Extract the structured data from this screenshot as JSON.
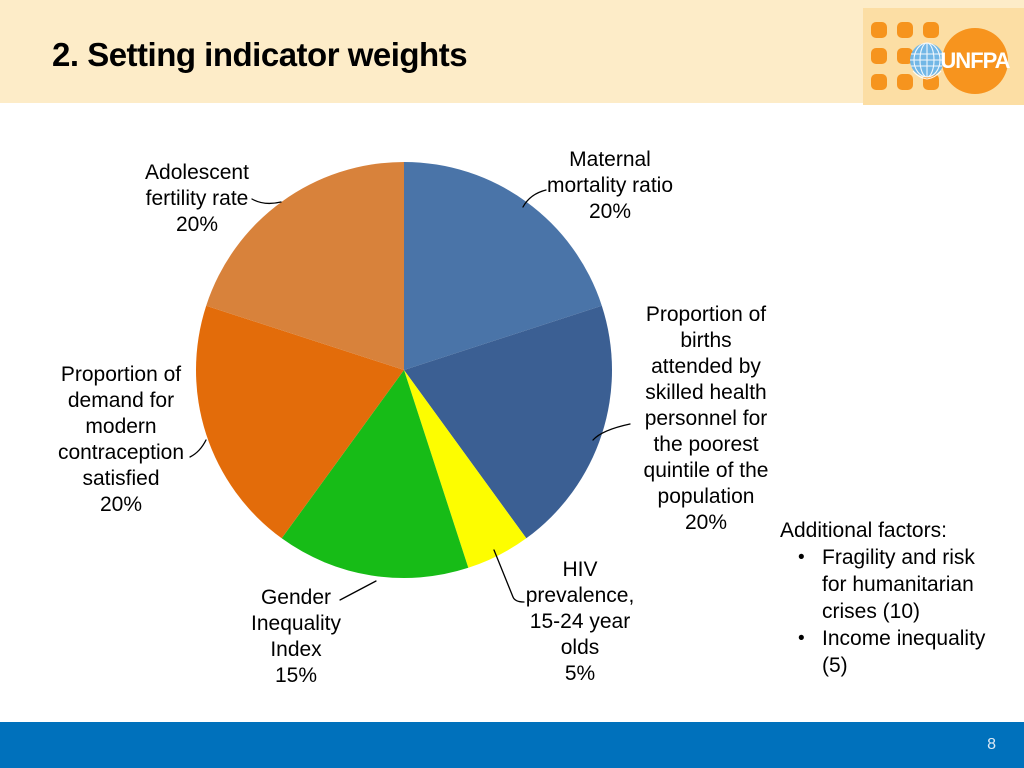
{
  "header": {
    "title": "2. Setting indicator weights",
    "bg_color": "#FDECC8"
  },
  "logo": {
    "name": "UNFPA",
    "text": "UNFPA",
    "dot_color": "#F6941E",
    "circle_color": "#F7941E",
    "globe_color": "#72B7E6",
    "box_color": "#FCDEA4"
  },
  "chart_data": {
    "type": "pie",
    "title": "",
    "start_angle_deg": 0,
    "direction": "clockwise",
    "center": [
      404,
      370
    ],
    "radius": 208,
    "legend_position": "callout-labels",
    "slices": [
      {
        "label": "Maternal mortality ratio",
        "value": 20,
        "color": "#4A74A8",
        "callout": "Maternal\nmortality ratio\n20%"
      },
      {
        "label": "Proportion of births attended by skilled health personnel for the poorest quintile of the population",
        "value": 20,
        "color": "#3B5F93",
        "callout": "Proportion of\nbirths\nattended by\nskilled health\npersonnel for\nthe poorest\nquintile of the\npopulation\n20%"
      },
      {
        "label": "HIV prevalence, 15-24 year olds",
        "value": 5,
        "color": "#FDFD00",
        "callout": "HIV\nprevalence,\n15-24 year\nolds\n5%"
      },
      {
        "label": "Gender Inequality Index",
        "value": 15,
        "color": "#17BC17",
        "callout": "Gender\nInequality\nIndex\n15%"
      },
      {
        "label": "Proportion of demand for modern contraception satisfied",
        "value": 20,
        "color": "#E36C0A",
        "callout": "Proportion of\ndemand for\nmodern\ncontraception\nsatisfied\n20%"
      },
      {
        "label": "Adolescent fertility rate",
        "value": 20,
        "color": "#D8823B",
        "callout": "Adolescent\nfertility rate\n20%"
      }
    ]
  },
  "additional": {
    "heading": "Additional factors:",
    "bullet": "•",
    "items": [
      "Fragility and risk\nfor humanitarian\ncrises (10)",
      "Income inequality\n(5)"
    ]
  },
  "footer": {
    "page_number": "8",
    "bg_color": "#0071BC"
  }
}
